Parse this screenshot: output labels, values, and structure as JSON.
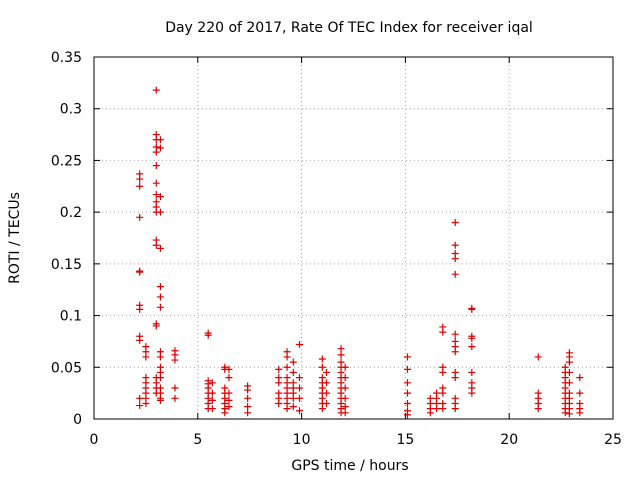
{
  "chart_data": {
    "type": "scatter",
    "title": "Day 220 of 2017, Rate Of TEC Index for receiver iqal",
    "xlabel": "GPS time / hours",
    "ylabel": "ROTI / TECUs",
    "xlim": [
      0,
      25
    ],
    "ylim": [
      0,
      0.35
    ],
    "x_ticks": [
      0,
      5,
      10,
      15,
      20,
      25
    ],
    "y_ticks": [
      0,
      0.05,
      0.1,
      0.15,
      0.2,
      0.25,
      0.3,
      0.35
    ],
    "x_tick_labels": [
      "0",
      "5",
      "10",
      "15",
      "20",
      "25"
    ],
    "y_tick_labels": [
      "0",
      "0.05",
      "0.1",
      "0.15",
      "0.2",
      "0.25",
      "0.3",
      "0.35"
    ],
    "grid": true,
    "marker": "+",
    "color": "#dd0000",
    "points": [
      [
        2.2,
        0.237
      ],
      [
        2.2,
        0.232
      ],
      [
        2.2,
        0.225
      ],
      [
        2.2,
        0.195
      ],
      [
        2.2,
        0.143
      ],
      [
        2.2,
        0.142
      ],
      [
        2.2,
        0.11
      ],
      [
        2.2,
        0.106
      ],
      [
        2.2,
        0.08
      ],
      [
        2.2,
        0.076
      ],
      [
        2.2,
        0.02
      ],
      [
        2.2,
        0.013
      ],
      [
        2.5,
        0.07
      ],
      [
        2.5,
        0.065
      ],
      [
        2.5,
        0.06
      ],
      [
        2.5,
        0.04
      ],
      [
        2.5,
        0.035
      ],
      [
        2.5,
        0.03
      ],
      [
        2.5,
        0.025
      ],
      [
        2.5,
        0.02
      ],
      [
        2.5,
        0.015
      ],
      [
        3.0,
        0.318
      ],
      [
        3.0,
        0.275
      ],
      [
        3.0,
        0.27
      ],
      [
        3.0,
        0.263
      ],
      [
        3.0,
        0.258
      ],
      [
        3.0,
        0.245
      ],
      [
        3.0,
        0.228
      ],
      [
        3.0,
        0.217
      ],
      [
        3.0,
        0.21
      ],
      [
        3.0,
        0.205
      ],
      [
        3.0,
        0.2
      ],
      [
        3.0,
        0.173
      ],
      [
        3.0,
        0.168
      ],
      [
        3.0,
        0.092
      ],
      [
        3.0,
        0.09
      ],
      [
        3.0,
        0.04
      ],
      [
        3.0,
        0.035
      ],
      [
        3.0,
        0.03
      ],
      [
        3.0,
        0.025
      ],
      [
        3.2,
        0.27
      ],
      [
        3.2,
        0.262
      ],
      [
        3.2,
        0.215
      ],
      [
        3.2,
        0.2
      ],
      [
        3.2,
        0.165
      ],
      [
        3.2,
        0.128
      ],
      [
        3.2,
        0.118
      ],
      [
        3.2,
        0.108
      ],
      [
        3.2,
        0.065
      ],
      [
        3.2,
        0.06
      ],
      [
        3.2,
        0.05
      ],
      [
        3.2,
        0.045
      ],
      [
        3.2,
        0.04
      ],
      [
        3.2,
        0.03
      ],
      [
        3.2,
        0.025
      ],
      [
        3.2,
        0.02
      ],
      [
        3.2,
        0.018
      ],
      [
        3.9,
        0.066
      ],
      [
        3.9,
        0.062
      ],
      [
        3.9,
        0.057
      ],
      [
        3.9,
        0.03
      ],
      [
        3.9,
        0.02
      ],
      [
        5.5,
        0.083
      ],
      [
        5.5,
        0.081
      ],
      [
        5.5,
        0.037
      ],
      [
        5.5,
        0.034
      ],
      [
        5.5,
        0.03
      ],
      [
        5.5,
        0.025
      ],
      [
        5.5,
        0.02
      ],
      [
        5.5,
        0.015
      ],
      [
        5.5,
        0.01
      ],
      [
        5.7,
        0.035
      ],
      [
        5.7,
        0.025
      ],
      [
        5.7,
        0.018
      ],
      [
        5.7,
        0.01
      ],
      [
        6.3,
        0.05
      ],
      [
        6.3,
        0.048
      ],
      [
        6.3,
        0.03
      ],
      [
        6.3,
        0.025
      ],
      [
        6.3,
        0.02
      ],
      [
        6.3,
        0.015
      ],
      [
        6.3,
        0.01
      ],
      [
        6.3,
        0.006
      ],
      [
        6.5,
        0.048
      ],
      [
        6.5,
        0.04
      ],
      [
        6.5,
        0.025
      ],
      [
        6.5,
        0.018
      ],
      [
        6.5,
        0.012
      ],
      [
        7.4,
        0.032
      ],
      [
        7.4,
        0.028
      ],
      [
        7.4,
        0.02
      ],
      [
        7.4,
        0.012
      ],
      [
        7.4,
        0.006
      ],
      [
        8.9,
        0.048
      ],
      [
        8.9,
        0.04
      ],
      [
        8.9,
        0.035
      ],
      [
        8.9,
        0.025
      ],
      [
        8.9,
        0.02
      ],
      [
        8.9,
        0.015
      ],
      [
        9.3,
        0.065
      ],
      [
        9.3,
        0.06
      ],
      [
        9.3,
        0.05
      ],
      [
        9.3,
        0.04
      ],
      [
        9.3,
        0.035
      ],
      [
        9.3,
        0.03
      ],
      [
        9.3,
        0.025
      ],
      [
        9.3,
        0.02
      ],
      [
        9.3,
        0.015
      ],
      [
        9.3,
        0.01
      ],
      [
        9.6,
        0.055
      ],
      [
        9.6,
        0.045
      ],
      [
        9.6,
        0.035
      ],
      [
        9.6,
        0.03
      ],
      [
        9.6,
        0.025
      ],
      [
        9.6,
        0.02
      ],
      [
        9.6,
        0.012
      ],
      [
        9.9,
        0.072
      ],
      [
        9.9,
        0.04
      ],
      [
        9.9,
        0.03
      ],
      [
        9.9,
        0.02
      ],
      [
        9.9,
        0.008
      ],
      [
        11.0,
        0.058
      ],
      [
        11.0,
        0.05
      ],
      [
        11.0,
        0.04
      ],
      [
        11.0,
        0.035
      ],
      [
        11.0,
        0.03
      ],
      [
        11.0,
        0.025
      ],
      [
        11.0,
        0.02
      ],
      [
        11.0,
        0.015
      ],
      [
        11.0,
        0.01
      ],
      [
        11.2,
        0.045
      ],
      [
        11.2,
        0.035
      ],
      [
        11.2,
        0.025
      ],
      [
        11.2,
        0.015
      ],
      [
        11.9,
        0.068
      ],
      [
        11.9,
        0.062
      ],
      [
        11.9,
        0.055
      ],
      [
        11.9,
        0.05
      ],
      [
        11.9,
        0.045
      ],
      [
        11.9,
        0.04
      ],
      [
        11.9,
        0.035
      ],
      [
        11.9,
        0.03
      ],
      [
        11.9,
        0.025
      ],
      [
        11.9,
        0.02
      ],
      [
        11.9,
        0.015
      ],
      [
        11.9,
        0.01
      ],
      [
        11.9,
        0.006
      ],
      [
        12.1,
        0.05
      ],
      [
        12.1,
        0.04
      ],
      [
        12.1,
        0.03
      ],
      [
        12.1,
        0.02
      ],
      [
        12.1,
        0.012
      ],
      [
        12.1,
        0.006
      ],
      [
        15.1,
        0.06
      ],
      [
        15.1,
        0.048
      ],
      [
        15.1,
        0.035
      ],
      [
        15.1,
        0.025
      ],
      [
        15.1,
        0.015
      ],
      [
        15.1,
        0.008
      ],
      [
        15.1,
        0.004
      ],
      [
        16.2,
        0.02
      ],
      [
        16.2,
        0.015
      ],
      [
        16.2,
        0.01
      ],
      [
        16.2,
        0.006
      ],
      [
        16.5,
        0.025
      ],
      [
        16.5,
        0.02
      ],
      [
        16.5,
        0.015
      ],
      [
        16.5,
        0.01
      ],
      [
        16.8,
        0.089
      ],
      [
        16.8,
        0.084
      ],
      [
        16.8,
        0.05
      ],
      [
        16.8,
        0.045
      ],
      [
        16.8,
        0.03
      ],
      [
        16.8,
        0.025
      ],
      [
        16.8,
        0.015
      ],
      [
        16.8,
        0.01
      ],
      [
        17.4,
        0.19
      ],
      [
        17.4,
        0.168
      ],
      [
        17.4,
        0.16
      ],
      [
        17.4,
        0.155
      ],
      [
        17.4,
        0.14
      ],
      [
        17.4,
        0.082
      ],
      [
        17.4,
        0.075
      ],
      [
        17.4,
        0.07
      ],
      [
        17.4,
        0.065
      ],
      [
        17.4,
        0.045
      ],
      [
        17.4,
        0.04
      ],
      [
        17.4,
        0.02
      ],
      [
        17.4,
        0.015
      ],
      [
        17.4,
        0.01
      ],
      [
        18.2,
        0.107
      ],
      [
        18.2,
        0.106
      ],
      [
        18.2,
        0.08
      ],
      [
        18.2,
        0.078
      ],
      [
        18.2,
        0.07
      ],
      [
        18.2,
        0.045
      ],
      [
        18.2,
        0.035
      ],
      [
        18.2,
        0.03
      ],
      [
        18.2,
        0.025
      ],
      [
        21.4,
        0.06
      ],
      [
        21.4,
        0.025
      ],
      [
        21.4,
        0.02
      ],
      [
        21.4,
        0.015
      ],
      [
        21.4,
        0.01
      ],
      [
        22.7,
        0.05
      ],
      [
        22.7,
        0.045
      ],
      [
        22.7,
        0.04
      ],
      [
        22.7,
        0.035
      ],
      [
        22.7,
        0.03
      ],
      [
        22.7,
        0.025
      ],
      [
        22.7,
        0.02
      ],
      [
        22.7,
        0.015
      ],
      [
        22.7,
        0.01
      ],
      [
        22.7,
        0.006
      ],
      [
        22.9,
        0.064
      ],
      [
        22.9,
        0.06
      ],
      [
        22.9,
        0.055
      ],
      [
        22.9,
        0.045
      ],
      [
        22.9,
        0.035
      ],
      [
        22.9,
        0.025
      ],
      [
        22.9,
        0.02
      ],
      [
        22.9,
        0.015
      ],
      [
        22.9,
        0.01
      ],
      [
        22.9,
        0.005
      ],
      [
        23.4,
        0.04
      ],
      [
        23.4,
        0.025
      ],
      [
        23.4,
        0.015
      ],
      [
        23.4,
        0.01
      ],
      [
        23.4,
        0.006
      ]
    ]
  }
}
